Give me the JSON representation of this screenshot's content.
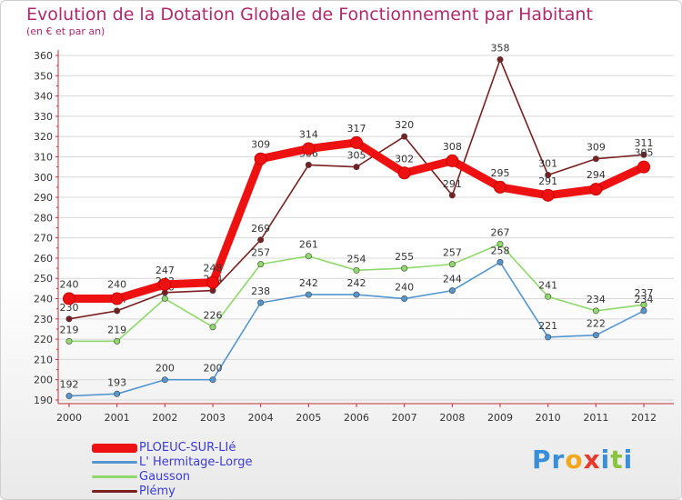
{
  "chart_data": {
    "type": "line",
    "title": "Evolution de la Dotation Globale de Fonctionnement par Habitant",
    "subtitle": "(en € et par an)",
    "xlabel": "",
    "ylabel": "",
    "categories": [
      "2000",
      "2001",
      "2002",
      "2003",
      "2004",
      "2005",
      "2006",
      "2007",
      "2008",
      "2009",
      "2010",
      "2011",
      "2012"
    ],
    "ylim": [
      190,
      360
    ],
    "yticks": [
      190,
      200,
      210,
      220,
      230,
      240,
      250,
      260,
      270,
      280,
      290,
      300,
      310,
      320,
      330,
      340,
      350,
      360
    ],
    "series": [
      {
        "name": "Plémy",
        "color": "#7a1f1f",
        "values": [
          230,
          234,
          243,
          244,
          269,
          306,
          305,
          320,
          291,
          358,
          301,
          309,
          311
        ]
      },
      {
        "name": "Gausson",
        "color": "#8fd96a",
        "values": [
          219,
          219,
          240,
          226,
          257,
          261,
          254,
          255,
          257,
          267,
          241,
          234,
          237
        ]
      },
      {
        "name": "L' Hermitage-Lorge",
        "color": "#5596d0",
        "values": [
          192,
          193,
          200,
          200,
          238,
          242,
          242,
          240,
          244,
          258,
          221,
          222,
          234
        ]
      },
      {
        "name": "PLOEUC-SUR-LIé",
        "color": "#ee1111",
        "values": [
          240,
          240,
          247,
          248,
          309,
          314,
          317,
          302,
          308,
          295,
          291,
          294,
          305
        ]
      }
    ],
    "legend_position": "bottom-left"
  },
  "legend": [
    {
      "name": "PLOEUC-SUR-LIé",
      "color": "#ee1111"
    },
    {
      "name": "L' Hermitage-Lorge",
      "color": "#5596d0"
    },
    {
      "name": "Gausson",
      "color": "#8fd96a"
    },
    {
      "name": "Plémy",
      "color": "#7a1f1f"
    }
  ],
  "logo": {
    "text": "Proxiti",
    "letters": [
      "P",
      "r",
      "o",
      "x",
      "i",
      "t",
      "i"
    ],
    "colors": [
      "#3a8fd8",
      "#3a8fd8",
      "#f2a81d",
      "#e63a2e",
      "#3a8fd8",
      "#8bc43f",
      "#3a8fd8"
    ]
  }
}
